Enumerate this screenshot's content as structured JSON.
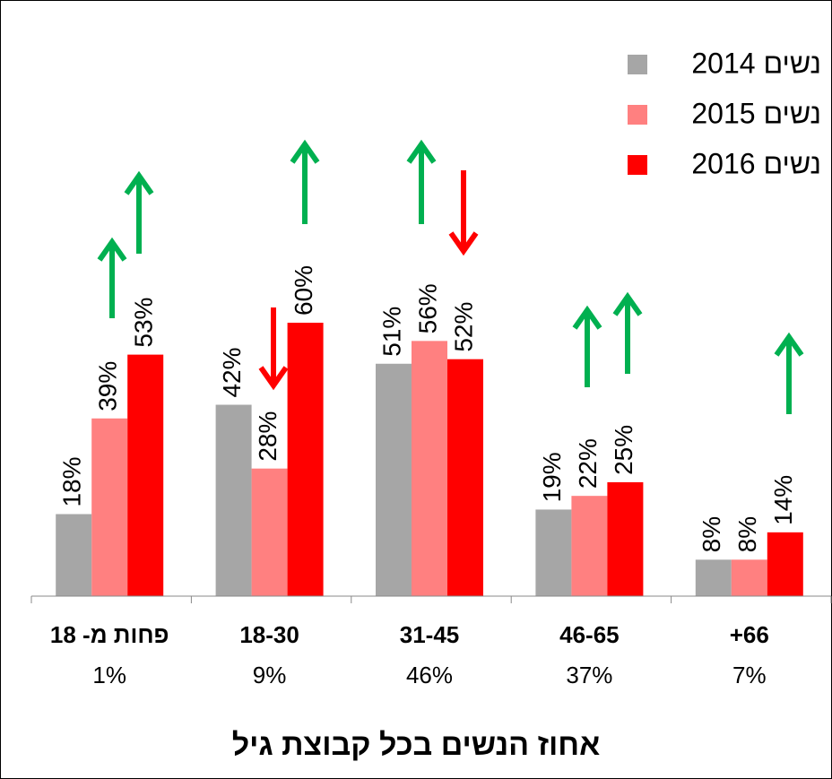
{
  "chart_data": {
    "type": "bar",
    "title": "אחוז הנשים בכל קבוצת גיל",
    "categories": [
      "פחות מ- 18",
      "18-30",
      "31-45",
      "46-65",
      "+66"
    ],
    "category_shares": [
      "1%",
      "9%",
      "46%",
      "37%",
      "7%"
    ],
    "series": [
      {
        "name": "נשים 2014",
        "color": "#a6a6a6",
        "values": [
          18,
          42,
          51,
          19,
          8
        ],
        "value_labels": [
          "18%",
          "42%",
          "51%",
          "19%",
          "8%"
        ]
      },
      {
        "name": "נשים 2015",
        "color": "#ff8080",
        "values": [
          39,
          28,
          56,
          22,
          8
        ],
        "value_labels": [
          "39%",
          "28%",
          "56%",
          "22%",
          "8%"
        ]
      },
      {
        "name": "נשים 2016",
        "color": "#ff0000",
        "values": [
          53,
          60,
          52,
          25,
          14
        ],
        "value_labels": [
          "53%",
          "60%",
          "52%",
          "25%",
          "14%"
        ]
      }
    ],
    "legend": "top-right"
  }
}
